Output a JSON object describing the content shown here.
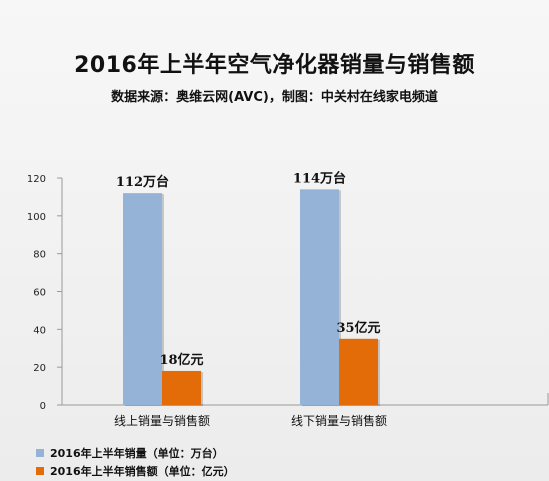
{
  "title": "2016年上半年空气净化器销量与销售额",
  "subtitle": "数据来源：奥维云网(AVC)，制图：中关村在线家电频道",
  "colors": {
    "series_sales_volume": "#95B3D7",
    "series_sales_amount": "#E36C09"
  },
  "chart_data": {
    "type": "bar",
    "categories": [
      "线上销量与销售额",
      "线下销量与销售额"
    ],
    "series": [
      {
        "name": "2016年上半年销量（单位：万台）",
        "values": [
          112,
          114
        ],
        "labels": [
          "112万台",
          "114万台"
        ]
      },
      {
        "name": "2016年上半年销售额（单位：亿元）",
        "values": [
          18,
          35
        ],
        "labels": [
          "18亿元",
          "35亿元"
        ]
      }
    ],
    "yticks": [
      0,
      20,
      40,
      60,
      80,
      100,
      120
    ],
    "ylim": [
      0,
      120
    ],
    "grid": false,
    "legend": "bottom-left"
  }
}
